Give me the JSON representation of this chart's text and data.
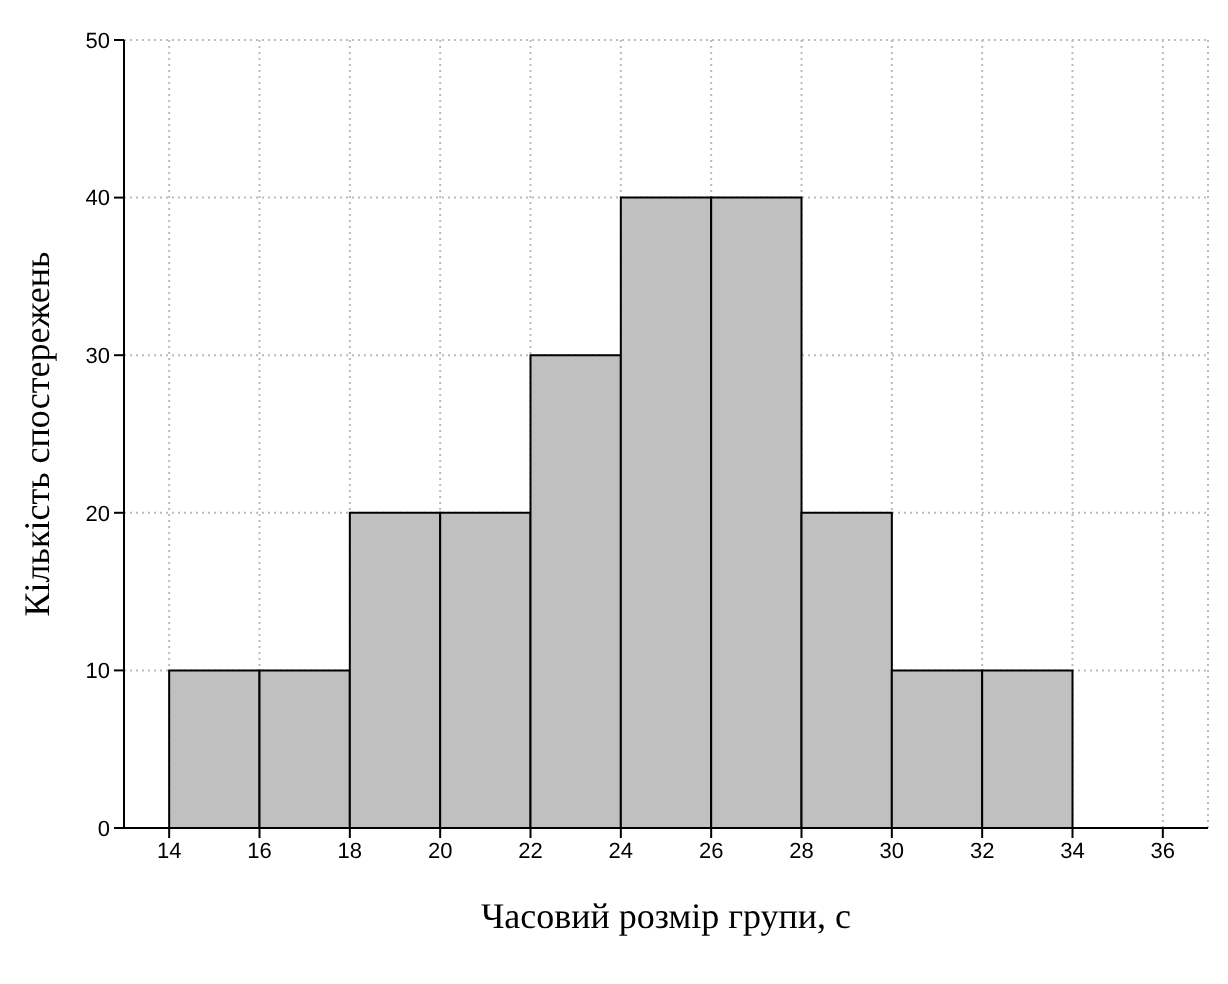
{
  "chart_data": {
    "type": "histogram",
    "xlabel": "Часовий розмір групи, с",
    "ylabel": "Кількість спостережень",
    "bins": [
      14,
      16,
      18,
      20,
      22,
      24,
      26,
      28,
      30,
      32,
      34
    ],
    "values": [
      10,
      10,
      20,
      20,
      30,
      40,
      40,
      20,
      10,
      10
    ],
    "color": "#c0c0c0",
    "xlim": [
      13,
      37
    ],
    "xticks": [
      14,
      16,
      18,
      20,
      22,
      24,
      26,
      28,
      30,
      32,
      34,
      36
    ],
    "ylim": [
      0,
      50
    ],
    "yticks": [
      0,
      10,
      20,
      30,
      40,
      50
    ],
    "grid": true
  }
}
